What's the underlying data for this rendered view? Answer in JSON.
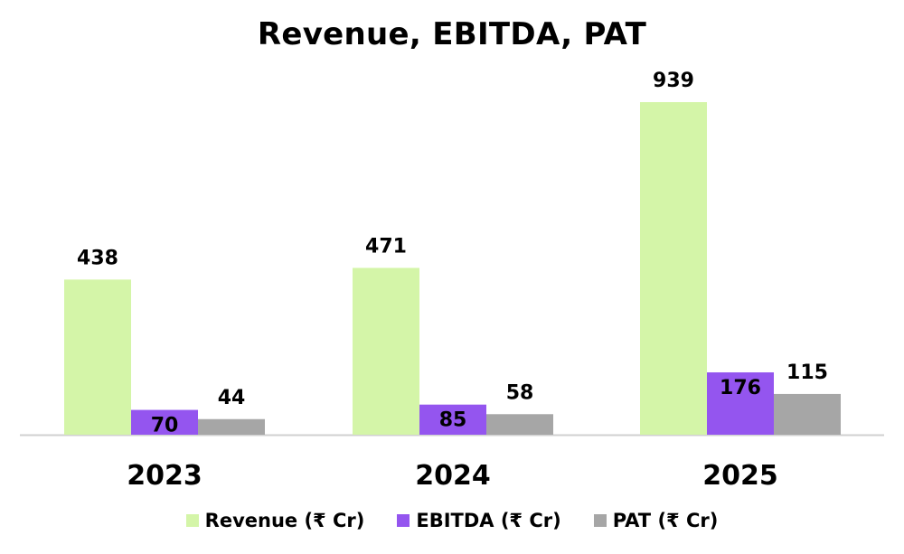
{
  "chart_data": {
    "type": "bar",
    "title": "Revenue, EBITDA, PAT",
    "categories": [
      "2023",
      "2024",
      "2025"
    ],
    "series": [
      {
        "name": "Revenue (₹ Cr)",
        "color": "#d4f5a8",
        "label_color": "#000000",
        "label_inside": false,
        "values": [
          438,
          471,
          939
        ]
      },
      {
        "name": "EBITDA (₹ Cr)",
        "color": "#9455ef",
        "label_color": "#000000",
        "label_inside": true,
        "values": [
          70,
          85,
          176
        ]
      },
      {
        "name": "PAT (₹ Cr)",
        "color": "#a6a6a6",
        "label_color": "#000000",
        "label_inside": false,
        "values": [
          44,
          58,
          115
        ]
      }
    ],
    "xlabel": "",
    "ylabel": "",
    "ylim": [
      0,
      939
    ],
    "grid": false,
    "legend_position": "bottom"
  }
}
